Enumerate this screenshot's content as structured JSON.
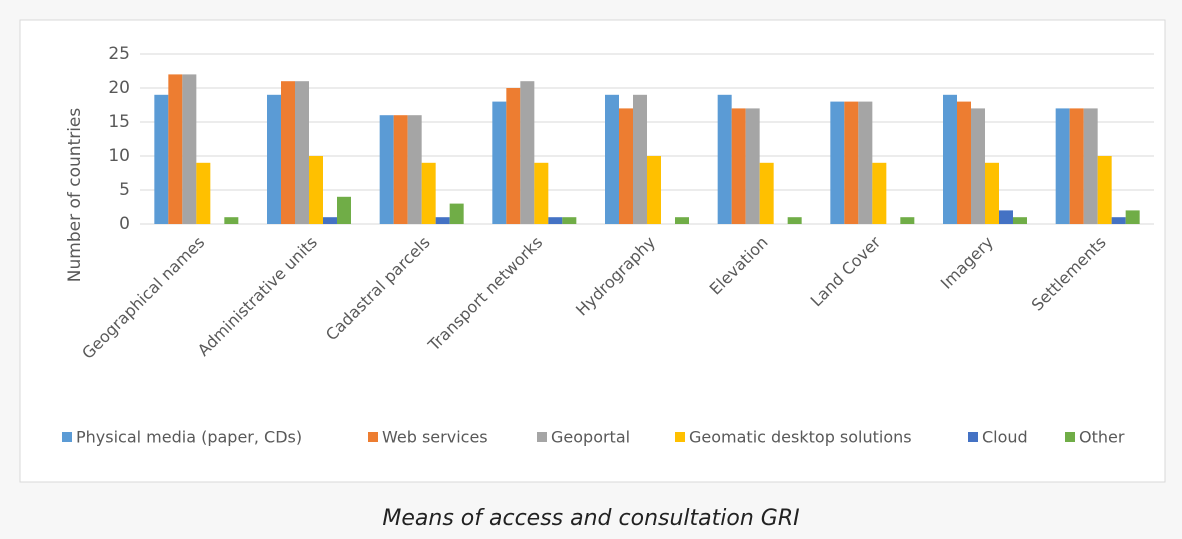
{
  "chart_data": {
    "type": "bar",
    "caption": "Means of access and consultation GRI",
    "y_label": "Number of countries",
    "categories": [
      "Geographical names",
      "Administrative units",
      "Cadastral parcels",
      "Transport networks",
      "Hydrography",
      "Elevation",
      "Land Cover",
      "Imagery",
      "Settlements"
    ],
    "series": [
      {
        "name": "Physical media (paper, CDs)",
        "color": "#5b9bd5",
        "values": [
          19,
          19,
          16,
          18,
          19,
          19,
          18,
          19,
          17
        ]
      },
      {
        "name": "Web services",
        "color": "#ed7d31",
        "values": [
          22,
          21,
          16,
          20,
          17,
          17,
          18,
          18,
          17
        ]
      },
      {
        "name": "Geoportal",
        "color": "#a5a5a5",
        "values": [
          22,
          21,
          16,
          21,
          19,
          17,
          18,
          17,
          17
        ]
      },
      {
        "name": "Geomatic desktop solutions",
        "color": "#ffc000",
        "values": [
          9,
          10,
          9,
          9,
          10,
          9,
          9,
          9,
          10
        ]
      },
      {
        "name": "Cloud",
        "color": "#4472c4",
        "values": [
          0,
          1,
          1,
          1,
          0,
          0,
          0,
          2,
          1
        ]
      },
      {
        "name": "Other",
        "color": "#70ad47",
        "values": [
          1,
          4,
          3,
          1,
          1,
          1,
          1,
          1,
          2
        ]
      }
    ],
    "ylim": [
      0,
      25
    ],
    "yticks": [
      0,
      5,
      10,
      15,
      20,
      25
    ],
    "grid": true,
    "legend": "bottom"
  }
}
